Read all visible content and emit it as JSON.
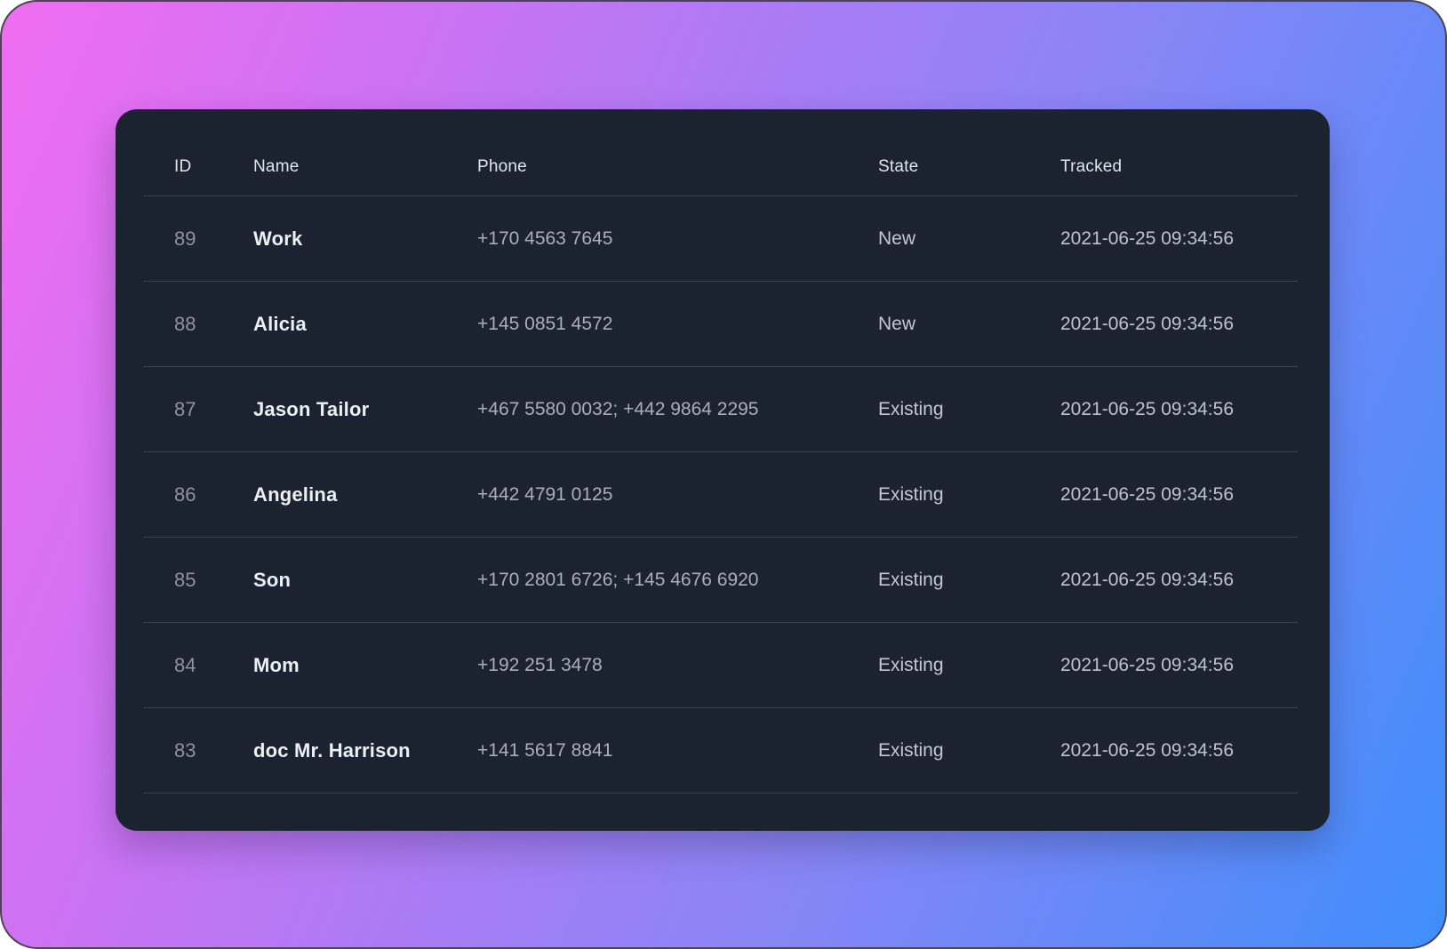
{
  "theme": {
    "background_gradient_from": "#f06df1",
    "background_gradient_mid1": "#c873f3",
    "background_gradient_mid2": "#8a85f6",
    "background_gradient_to": "#3f8efb",
    "outer_border_color": "#4a4454",
    "card_background": "#1b2230",
    "divider_color": "#3a4150"
  },
  "table": {
    "columns": [
      {
        "key": "id",
        "label": "ID"
      },
      {
        "key": "name",
        "label": "Name"
      },
      {
        "key": "phone",
        "label": "Phone"
      },
      {
        "key": "state",
        "label": "State"
      },
      {
        "key": "tracked",
        "label": "Tracked"
      }
    ],
    "rows": [
      {
        "id": "89",
        "name": "Work",
        "phone": "+170 4563 7645",
        "state": "New",
        "tracked": "2021-06-25 09:34:56"
      },
      {
        "id": "88",
        "name": "Alicia",
        "phone": "+145 0851 4572",
        "state": "New",
        "tracked": "2021-06-25 09:34:56"
      },
      {
        "id": "87",
        "name": "Jason Tailor",
        "phone": "+467 5580 0032; +442 9864 2295",
        "state": "Existing",
        "tracked": "2021-06-25 09:34:56"
      },
      {
        "id": "86",
        "name": "Angelina",
        "phone": "+442 4791 0125",
        "state": "Existing",
        "tracked": "2021-06-25 09:34:56"
      },
      {
        "id": "85",
        "name": "Son",
        "phone": "+170 2801 6726; +145 4676 6920",
        "state": "Existing",
        "tracked": "2021-06-25 09:34:56"
      },
      {
        "id": "84",
        "name": "Mom",
        "phone": "+192 251 3478",
        "state": "Existing",
        "tracked": "2021-06-25 09:34:56"
      },
      {
        "id": "83",
        "name": "doc Mr. Harrison",
        "phone": "+141 5617 8841",
        "state": "Existing",
        "tracked": "2021-06-25 09:34:56"
      }
    ]
  }
}
